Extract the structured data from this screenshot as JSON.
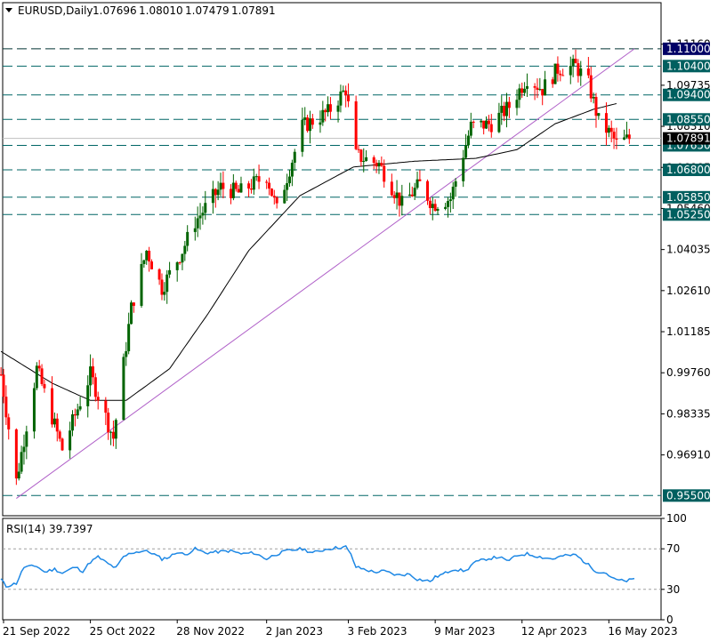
{
  "header": {
    "symbol": "EURUSD,Daily",
    "open": "1.07696",
    "high": "1.08010",
    "low": "1.07479",
    "close": "1.07891"
  },
  "colors": {
    "bull": "#006400",
    "bear": "#ff0000",
    "level_line": "#006666",
    "tag_bg": "#005f5f",
    "tag_text": "#ffffff",
    "top_tag_bg": "#000066",
    "price_tag_bg": "#000000",
    "trendline": "#b060c8",
    "ma_line": "#000000",
    "rsi_line": "#1e88e5",
    "frame": "#000000"
  },
  "chart_data": [
    {
      "type": "candlestick",
      "symbol": "EURUSD",
      "timeframe": "Daily",
      "ylim": [
        0.948,
        1.126
      ],
      "price_ticks": [
        "1.11160",
        "1.09735",
        "1.08310",
        "1.06885",
        "1.05460",
        "1.04035",
        "1.02610",
        "1.01185",
        "0.99760",
        "0.98335",
        "0.96910"
      ],
      "x_ticks": [
        "21 Sep 2022",
        "25 Oct 2022",
        "28 Nov 2022",
        "2 Jan 2023",
        "3 Feb 2023",
        "9 Mar 2023",
        "12 Apr 2023",
        "16 May 2023"
      ],
      "levels": [
        {
          "value": 1.11,
          "label": "1.11000",
          "style": "top"
        },
        {
          "value": 1.104,
          "label": "1.10400",
          "style": "level"
        },
        {
          "value": 1.094,
          "label": "1.09400",
          "style": "level"
        },
        {
          "value": 1.0855,
          "label": "1.08550",
          "style": "level"
        },
        {
          "value": 1.0765,
          "label": "1.07650",
          "style": "level"
        },
        {
          "value": 1.068,
          "label": "1.06800",
          "style": "level"
        },
        {
          "value": 1.0585,
          "label": "1.05850",
          "style": "level"
        },
        {
          "value": 1.0525,
          "label": "1.05250",
          "style": "level"
        },
        {
          "value": 0.955,
          "label": "0.95500",
          "style": "level"
        }
      ],
      "current_price": {
        "value": 1.07891,
        "label": "1.07891"
      },
      "trendline": {
        "from": {
          "x": "26 Sep 2022",
          "y": 0.954
        },
        "to": {
          "x": "26 May 2023",
          "y": 1.11
        }
      },
      "moving_average_anchors": [
        {
          "x": "20 Sep 2022",
          "y": 1.005
        },
        {
          "x": "10 Oct 2022",
          "y": 0.994
        },
        {
          "x": "25 Oct 2022",
          "y": 0.988
        },
        {
          "x": "8 Nov 2022",
          "y": 0.988
        },
        {
          "x": "25 Nov 2022",
          "y": 0.999
        },
        {
          "x": "10 Dec 2022",
          "y": 1.018
        },
        {
          "x": "26 Dec 2022",
          "y": 1.04
        },
        {
          "x": "15 Jan 2023",
          "y": 1.059
        },
        {
          "x": "5 Feb 2023",
          "y": 1.069
        },
        {
          "x": "1 Mar 2023",
          "y": 1.071
        },
        {
          "x": "25 Mar 2023",
          "y": 1.072
        },
        {
          "x": "10 Apr 2023",
          "y": 1.075
        },
        {
          "x": "25 Apr 2023",
          "y": 1.084
        },
        {
          "x": "10 May 2023",
          "y": 1.089
        },
        {
          "x": "19 May 2023",
          "y": 1.091
        }
      ],
      "close_anchors": [
        {
          "x": "20 Sep 2022",
          "y": 0.997
        },
        {
          "x": "26 Sep 2022",
          "y": 0.96
        },
        {
          "x": "4 Oct 2022",
          "y": 0.999
        },
        {
          "x": "14 Oct 2022",
          "y": 0.971
        },
        {
          "x": "25 Oct 2022",
          "y": 0.997
        },
        {
          "x": "3 Nov 2022",
          "y": 0.975
        },
        {
          "x": "10 Nov 2022",
          "y": 1.02
        },
        {
          "x": "16 Nov 2022",
          "y": 1.04
        },
        {
          "x": "22 Nov 2022",
          "y": 1.027
        },
        {
          "x": "30 Nov 2022",
          "y": 1.04
        },
        {
          "x": "5 Dec 2022",
          "y": 1.05
        },
        {
          "x": "15 Dec 2022",
          "y": 1.062
        },
        {
          "x": "22 Dec 2022",
          "y": 1.06
        },
        {
          "x": "2 Jan 2023",
          "y": 1.066
        },
        {
          "x": "6 Jan 2023",
          "y": 1.054
        },
        {
          "x": "16 Jan 2023",
          "y": 1.083
        },
        {
          "x": "26 Jan 2023",
          "y": 1.088
        },
        {
          "x": "2 Feb 2023",
          "y": 1.096
        },
        {
          "x": "6 Feb 2023",
          "y": 1.073
        },
        {
          "x": "15 Feb 2023",
          "y": 1.07
        },
        {
          "x": "24 Feb 2023",
          "y": 1.056
        },
        {
          "x": "3 Mar 2023",
          "y": 1.063
        },
        {
          "x": "8 Mar 2023",
          "y": 1.056
        },
        {
          "x": "15 Mar 2023",
          "y": 1.058
        },
        {
          "x": "23 Mar 2023",
          "y": 1.083
        },
        {
          "x": "31 Mar 2023",
          "y": 1.084
        },
        {
          "x": "7 Apr 2023",
          "y": 1.09
        },
        {
          "x": "14 Apr 2023",
          "y": 1.1
        },
        {
          "x": "20 Apr 2023",
          "y": 1.096
        },
        {
          "x": "26 Apr 2023",
          "y": 1.103
        },
        {
          "x": "3 May 2023",
          "y": 1.104
        },
        {
          "x": "8 May 2023",
          "y": 1.098
        },
        {
          "x": "12 May 2023",
          "y": 1.085
        },
        {
          "x": "17 May 2023",
          "y": 1.08
        },
        {
          "x": "19 May 2023",
          "y": 1.077
        },
        {
          "x": "24 May 2023",
          "y": 1.0789
        }
      ]
    },
    {
      "type": "line",
      "title": "RSI(14) 39.7397",
      "ylim": [
        0,
        100
      ],
      "y_ticks": [
        "100",
        "70",
        "30",
        "0"
      ],
      "levels": [
        70,
        30
      ],
      "series": [
        {
          "x": [
            "20 Sep 2022",
            "22 Sep 2022",
            "26 Sep 2022",
            "29 Sep 2022",
            "4 Oct 2022",
            "7 Oct 2022",
            "11 Oct 2022",
            "14 Oct 2022",
            "19 Oct 2022",
            "22 Oct 2022",
            "25 Oct 2022",
            "28 Oct 2022",
            "1 Nov 2022",
            "4 Nov 2022",
            "7 Nov 2022",
            "10 Nov 2022",
            "15 Nov 2022",
            "18 Nov 2022",
            "22 Nov 2022",
            "25 Nov 2022",
            "28 Nov 2022",
            "1 Dec 2022",
            "5 Dec 2022",
            "9 Dec 2022",
            "14 Dec 2022",
            "19 Dec 2022",
            "23 Dec 2022",
            "28 Dec 2022",
            "2 Jan 2023",
            "5 Jan 2023",
            "10 Jan 2023",
            "16 Jan 2023",
            "20 Jan 2023",
            "26 Jan 2023",
            "2 Feb 2023",
            "4 Feb 2023",
            "6 Feb 2023",
            "9 Feb 2023",
            "13 Feb 2023",
            "17 Feb 2023",
            "22 Feb 2023",
            "27 Feb 2023",
            "2 Mar 2023",
            "7 Mar 2023",
            "9 Mar 2023",
            "13 Mar 2023",
            "16 Mar 2023",
            "21 Mar 2023",
            "24 Mar 2023",
            "29 Mar 2023",
            "3 Apr 2023",
            "6 Apr 2023",
            "11 Apr 2023",
            "14 Apr 2023",
            "19 Apr 2023",
            "24 Apr 2023",
            "28 Apr 2023",
            "3 May 2023",
            "5 May 2023",
            "8 May 2023",
            "11 May 2023",
            "15 May 2023",
            "18 May 2023",
            "22 May 2023",
            "26 May 2023"
          ],
          "values": [
            40,
            33,
            36,
            52,
            53,
            47,
            50,
            46,
            52,
            48,
            57,
            62,
            55,
            51,
            62,
            66,
            68,
            66,
            60,
            62,
            67,
            64,
            70,
            66,
            67,
            68,
            65,
            66,
            60,
            64,
            68,
            70,
            66,
            70,
            72,
            64,
            52,
            50,
            47,
            48,
            44,
            45,
            40,
            38,
            42,
            46,
            50,
            48,
            56,
            60,
            62,
            58,
            64,
            65,
            62,
            60,
            63,
            64,
            60,
            54,
            48,
            46,
            40,
            38,
            40
          ]
        }
      ]
    }
  ]
}
